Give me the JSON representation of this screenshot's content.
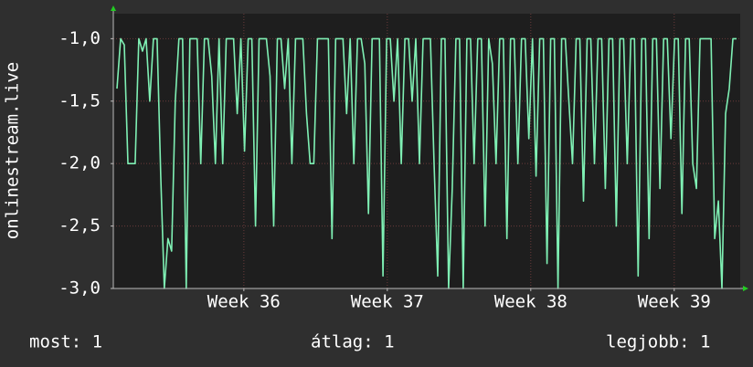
{
  "chart_data": {
    "type": "line",
    "y_label": "onlinestream.live",
    "ylim": [
      -3,
      -0.8
    ],
    "yticks": [
      {
        "value": -3,
        "label": "-3,0"
      },
      {
        "value": -2.5,
        "label": "-2,5"
      },
      {
        "value": -2,
        "label": "-2,0"
      },
      {
        "value": -1.5,
        "label": "-1,5"
      },
      {
        "value": -1,
        "label": "-1,0"
      }
    ],
    "xlim": [
      35.09,
      39.46
    ],
    "xticks": [
      {
        "value": 36,
        "label": "Week 36"
      },
      {
        "value": 37,
        "label": "Week 37"
      },
      {
        "value": 38,
        "label": "Week 38"
      },
      {
        "value": 39,
        "label": "Week 39"
      }
    ],
    "grid": true,
    "series": [
      {
        "color": "#7ff0b4",
        "values": [
          -1.4,
          -1.0,
          -1.05,
          -2.0,
          -2.0,
          -2.0,
          -1.0,
          -1.1,
          -1.0,
          -1.5,
          -1.0,
          -1.0,
          -2.1,
          -3.0,
          -2.6,
          -2.7,
          -1.5,
          -1.0,
          -1.0,
          -3.0,
          -1.0,
          -1.0,
          -1.0,
          -2.0,
          -1.0,
          -1.0,
          -1.3,
          -2.0,
          -1.0,
          -2.0,
          -1.0,
          -1.0,
          -1.0,
          -1.6,
          -1.0,
          -1.9,
          -1.0,
          -1.0,
          -2.5,
          -1.0,
          -1.0,
          -1.0,
          -1.3,
          -2.5,
          -1.0,
          -1.0,
          -1.4,
          -1.0,
          -2.0,
          -1.0,
          -1.0,
          -1.0,
          -1.6,
          -2.0,
          -2.0,
          -1.0,
          -1.0,
          -1.0,
          -1.0,
          -2.6,
          -1.0,
          -1.0,
          -1.0,
          -1.6,
          -1.0,
          -2.0,
          -1.0,
          -1.0,
          -1.2,
          -2.4,
          -1.0,
          -1.0,
          -1.0,
          -2.9,
          -1.0,
          -1.0,
          -1.5,
          -1.0,
          -2.0,
          -1.0,
          -1.0,
          -1.5,
          -1.0,
          -2.0,
          -1.0,
          -1.0,
          -1.0,
          -2.0,
          -2.9,
          -1.0,
          -1.0,
          -3.0,
          -2.2,
          -1.0,
          -1.0,
          -3.0,
          -1.0,
          -1.0,
          -2.0,
          -1.0,
          -1.0,
          -2.5,
          -1.0,
          -1.2,
          -2.0,
          -1.0,
          -1.0,
          -2.6,
          -1.0,
          -1.0,
          -2.0,
          -1.0,
          -1.0,
          -1.8,
          -1.0,
          -2.1,
          -1.0,
          -1.0,
          -2.8,
          -1.0,
          -1.0,
          -3.0,
          -1.0,
          -1.0,
          -1.5,
          -2.0,
          -1.0,
          -1.0,
          -2.3,
          -1.0,
          -1.0,
          -2.0,
          -1.0,
          -1.0,
          -2.2,
          -1.0,
          -1.0,
          -2.5,
          -1.0,
          -1.0,
          -2.0,
          -1.0,
          -1.0,
          -2.9,
          -1.0,
          -1.0,
          -2.6,
          -1.0,
          -1.0,
          -2.2,
          -1.0,
          -1.0,
          -1.8,
          -1.0,
          -1.0,
          -2.4,
          -1.0,
          -1.0,
          -2.0,
          -2.2,
          -1.0,
          -1.0,
          -1.0,
          -1.0,
          -2.6,
          -2.3,
          -3.0,
          -1.6,
          -1.4,
          -1.0,
          -1.0
        ]
      }
    ],
    "legend": {
      "current": "most: 1",
      "average": "átlag: 1",
      "max": "legjobb: 1"
    }
  }
}
